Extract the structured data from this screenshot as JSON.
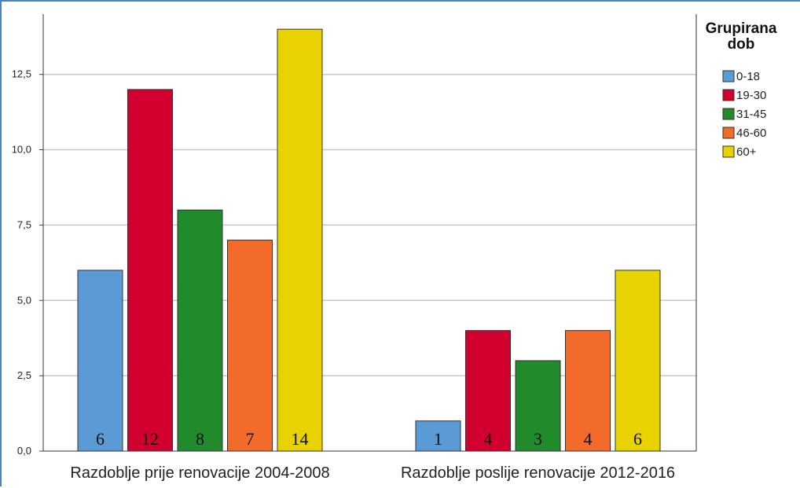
{
  "chart_data": {
    "type": "bar",
    "categories": [
      "Razdoblje prije renovacije 2004-2008",
      "Razdoblje poslije renovacije 2012-2016"
    ],
    "series": [
      {
        "name": "0-18",
        "color": "#5b9bd5",
        "values": [
          6,
          1
        ]
      },
      {
        "name": "19-30",
        "color": "#d1002e",
        "values": [
          12,
          4
        ]
      },
      {
        "name": "31-45",
        "color": "#218a2b",
        "values": [
          8,
          3
        ]
      },
      {
        "name": "46-60",
        "color": "#f26b2a",
        "values": [
          7,
          4
        ]
      },
      {
        "name": "60+",
        "color": "#e8d200",
        "values": [
          14,
          6
        ]
      }
    ],
    "data_labels": [
      [
        "6",
        "12",
        "8",
        "7",
        "14"
      ],
      [
        "1",
        "4",
        "3",
        "4",
        "6"
      ]
    ],
    "yticks": [
      "0,0",
      "2,5",
      "5,0",
      "7,5",
      "10,0",
      "12,5"
    ],
    "ytick_values": [
      0,
      2.5,
      5,
      7.5,
      10,
      12.5
    ],
    "ylim": [
      0,
      14.5
    ],
    "grid": true,
    "legend_title": "Grupirana dob",
    "legend_position": "top-right"
  }
}
